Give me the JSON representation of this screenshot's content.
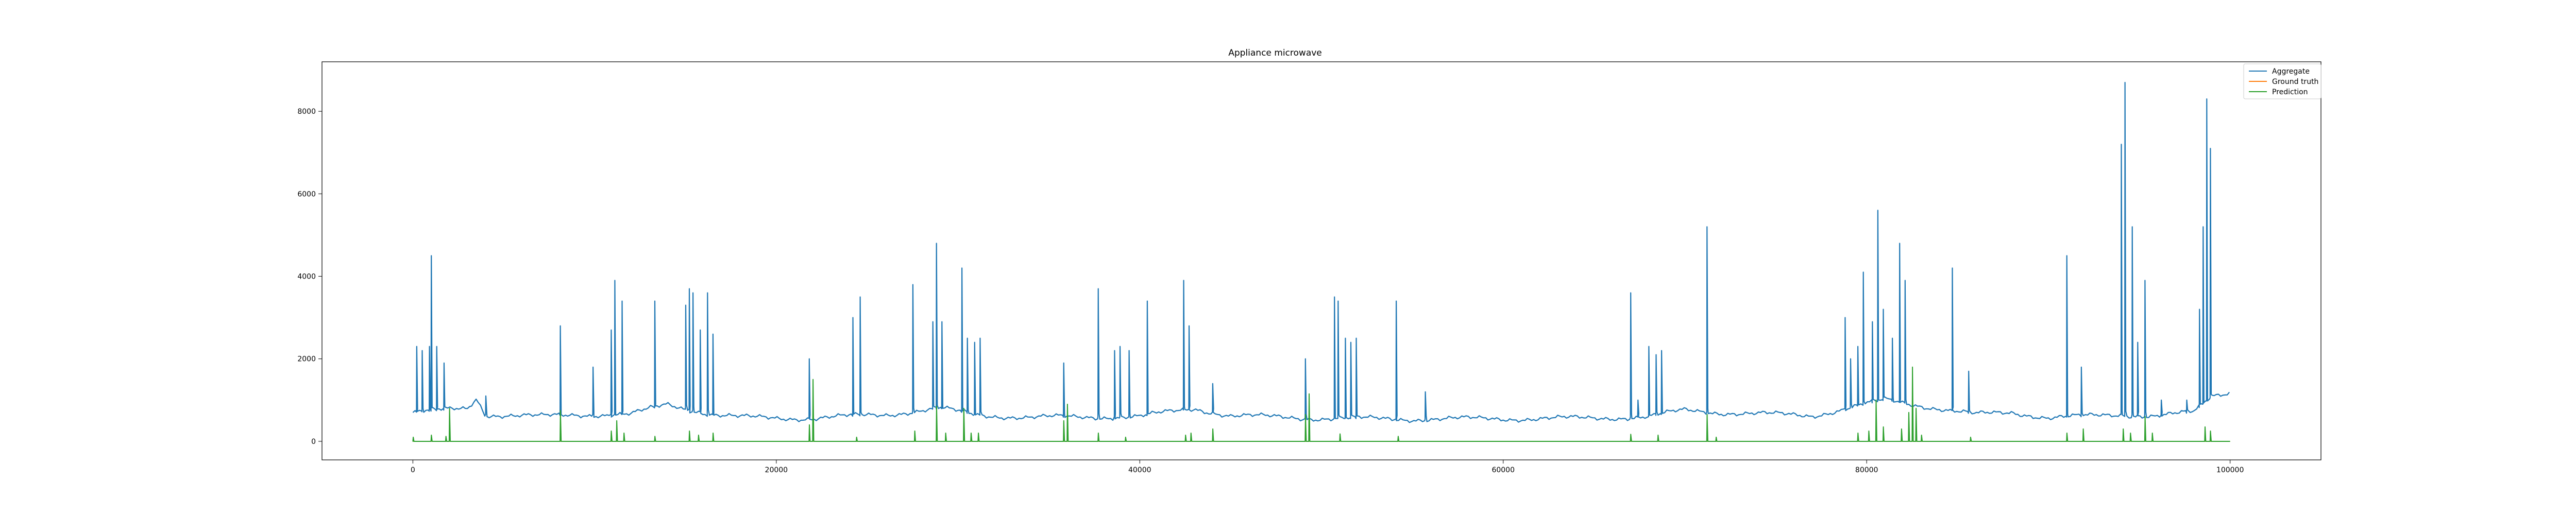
{
  "chart_data": {
    "type": "line",
    "title": "Appliance microwave",
    "xlabel": "",
    "ylabel": "",
    "xlim": [
      -5000,
      105000
    ],
    "ylim": [
      -450,
      9200
    ],
    "xticks": [
      0,
      20000,
      40000,
      60000,
      80000,
      100000
    ],
    "xtick_labels": [
      "0",
      "20000",
      "40000",
      "60000",
      "80000",
      "100000"
    ],
    "yticks": [
      0,
      2000,
      4000,
      6000,
      8000
    ],
    "ytick_labels": [
      "0",
      "2000",
      "4000",
      "6000",
      "8000"
    ],
    "grid": false,
    "legend_position": "top-right",
    "colors": {
      "Aggregate": "#1f77b4",
      "Ground truth": "#ff7f0e",
      "Prediction": "#2ca02c"
    },
    "series": [
      {
        "name": "Aggregate",
        "baseline": [
          [
            0,
            700
          ],
          [
            3000,
            800
          ],
          [
            3500,
            1050
          ],
          [
            4000,
            650
          ],
          [
            7000,
            600
          ],
          [
            9000,
            650
          ],
          [
            12000,
            650
          ],
          [
            14000,
            900
          ],
          [
            16500,
            650
          ],
          [
            18000,
            580
          ],
          [
            22000,
            560
          ],
          [
            26000,
            650
          ],
          [
            29000,
            800
          ],
          [
            31000,
            640
          ],
          [
            34000,
            580
          ],
          [
            40000,
            600
          ],
          [
            43000,
            800
          ],
          [
            45000,
            620
          ],
          [
            50000,
            560
          ],
          [
            55000,
            540
          ],
          [
            60000,
            550
          ],
          [
            65000,
            560
          ],
          [
            68000,
            600
          ],
          [
            70000,
            750
          ],
          [
            72000,
            700
          ],
          [
            77000,
            620
          ],
          [
            81000,
            1000
          ],
          [
            84000,
            800
          ],
          [
            86000,
            650
          ],
          [
            88000,
            700
          ],
          [
            90000,
            580
          ],
          [
            92000,
            600
          ],
          [
            94000,
            650
          ],
          [
            96000,
            620
          ],
          [
            98000,
            700
          ],
          [
            99000,
            1100
          ],
          [
            100000,
            1200
          ]
        ],
        "spikes": [
          [
            200,
            2300
          ],
          [
            500,
            2200
          ],
          [
            900,
            2300
          ],
          [
            1000,
            4500
          ],
          [
            1300,
            2300
          ],
          [
            1700,
            1900
          ],
          [
            4000,
            1100
          ],
          [
            8100,
            2800
          ],
          [
            9900,
            1800
          ],
          [
            10900,
            2700
          ],
          [
            11100,
            3900
          ],
          [
            11500,
            3400
          ],
          [
            13300,
            3400
          ],
          [
            15000,
            3300
          ],
          [
            15200,
            3700
          ],
          [
            15400,
            3600
          ],
          [
            15800,
            2700
          ],
          [
            16200,
            3600
          ],
          [
            16500,
            2600
          ],
          [
            21800,
            2000
          ],
          [
            24200,
            3000
          ],
          [
            24600,
            3500
          ],
          [
            27500,
            3800
          ],
          [
            28600,
            2900
          ],
          [
            28800,
            4800
          ],
          [
            29100,
            2900
          ],
          [
            30200,
            4200
          ],
          [
            30500,
            2500
          ],
          [
            30900,
            2400
          ],
          [
            31200,
            2500
          ],
          [
            35800,
            1900
          ],
          [
            37700,
            3700
          ],
          [
            38600,
            2200
          ],
          [
            38900,
            2300
          ],
          [
            39400,
            2200
          ],
          [
            40400,
            3400
          ],
          [
            42400,
            3900
          ],
          [
            42700,
            2800
          ],
          [
            44000,
            1400
          ],
          [
            49100,
            2000
          ],
          [
            50700,
            3500
          ],
          [
            50900,
            3400
          ],
          [
            51300,
            2500
          ],
          [
            51600,
            2400
          ],
          [
            51900,
            2500
          ],
          [
            54100,
            3400
          ],
          [
            55700,
            1200
          ],
          [
            67000,
            3600
          ],
          [
            67400,
            1000
          ],
          [
            68000,
            2300
          ],
          [
            68400,
            2100
          ],
          [
            68700,
            2200
          ],
          [
            71200,
            5200
          ],
          [
            78800,
            3000
          ],
          [
            79100,
            2000
          ],
          [
            79500,
            2300
          ],
          [
            79800,
            4100
          ],
          [
            80300,
            2900
          ],
          [
            80600,
            5600
          ],
          [
            80900,
            3200
          ],
          [
            81400,
            2500
          ],
          [
            81800,
            4800
          ],
          [
            82100,
            3900
          ],
          [
            84700,
            4200
          ],
          [
            85600,
            1700
          ],
          [
            91000,
            4500
          ],
          [
            91800,
            1800
          ],
          [
            94000,
            7200
          ],
          [
            94200,
            8700
          ],
          [
            94600,
            5200
          ],
          [
            94900,
            2400
          ],
          [
            95300,
            3900
          ],
          [
            96200,
            1000
          ],
          [
            97600,
            1000
          ],
          [
            98300,
            3200
          ],
          [
            98500,
            5200
          ],
          [
            98700,
            8300
          ],
          [
            98900,
            7100
          ]
        ]
      },
      {
        "name": "Ground truth",
        "values": [
          [
            0,
            0
          ],
          [
            100000,
            0
          ]
        ]
      },
      {
        "name": "Prediction",
        "baseline_value": 0,
        "spikes": [
          [
            0,
            100
          ],
          [
            1000,
            150
          ],
          [
            1800,
            120
          ],
          [
            2000,
            800
          ],
          [
            8100,
            750
          ],
          [
            10900,
            250
          ],
          [
            11200,
            500
          ],
          [
            11600,
            200
          ],
          [
            13300,
            120
          ],
          [
            15200,
            250
          ],
          [
            15700,
            150
          ],
          [
            16500,
            200
          ],
          [
            21800,
            400
          ],
          [
            22000,
            1500
          ],
          [
            24400,
            100
          ],
          [
            27600,
            250
          ],
          [
            28800,
            850
          ],
          [
            29300,
            200
          ],
          [
            30300,
            800
          ],
          [
            30700,
            200
          ],
          [
            31100,
            200
          ],
          [
            35800,
            500
          ],
          [
            36000,
            900
          ],
          [
            37700,
            200
          ],
          [
            39200,
            100
          ],
          [
            42500,
            150
          ],
          [
            42800,
            200
          ],
          [
            44000,
            300
          ],
          [
            49100,
            650
          ],
          [
            49300,
            1150
          ],
          [
            51000,
            180
          ],
          [
            54200,
            120
          ],
          [
            67000,
            170
          ],
          [
            68500,
            150
          ],
          [
            71200,
            650
          ],
          [
            71700,
            100
          ],
          [
            79500,
            200
          ],
          [
            80100,
            250
          ],
          [
            80500,
            1000
          ],
          [
            80900,
            350
          ],
          [
            81900,
            300
          ],
          [
            82300,
            700
          ],
          [
            82500,
            1800
          ],
          [
            82700,
            800
          ],
          [
            83000,
            150
          ],
          [
            85700,
            100
          ],
          [
            91000,
            200
          ],
          [
            91900,
            300
          ],
          [
            94100,
            300
          ],
          [
            94500,
            200
          ],
          [
            95300,
            600
          ],
          [
            95700,
            200
          ],
          [
            98600,
            350
          ],
          [
            98900,
            250
          ]
        ]
      }
    ]
  }
}
